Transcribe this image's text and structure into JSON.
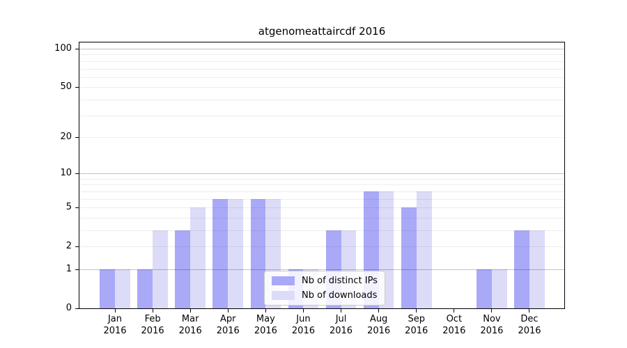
{
  "chart_data": {
    "type": "bar",
    "title": "atgenomeattaircdf 2016",
    "yscale": "log1p",
    "ylim": [
      0,
      112
    ],
    "grid": true,
    "legend_position": "lower center",
    "yticks": [
      "0",
      "1",
      "2",
      "5",
      "10",
      "20",
      "50",
      "100"
    ],
    "ytick_values": [
      0,
      1,
      2,
      5,
      10,
      20,
      50,
      100
    ],
    "major_gridlines": [
      1,
      10,
      100
    ],
    "minor_gridlines": [
      2,
      3,
      4,
      5,
      6,
      7,
      8,
      9,
      20,
      30,
      40,
      50,
      60,
      70,
      80,
      90
    ],
    "categories": [
      {
        "month": "Jan",
        "year": "2016"
      },
      {
        "month": "Feb",
        "year": "2016"
      },
      {
        "month": "Mar",
        "year": "2016"
      },
      {
        "month": "Apr",
        "year": "2016"
      },
      {
        "month": "May",
        "year": "2016"
      },
      {
        "month": "Jun",
        "year": "2016"
      },
      {
        "month": "Jul",
        "year": "2016"
      },
      {
        "month": "Aug",
        "year": "2016"
      },
      {
        "month": "Sep",
        "year": "2016"
      },
      {
        "month": "Oct",
        "year": "2016"
      },
      {
        "month": "Nov",
        "year": "2016"
      },
      {
        "month": "Dec",
        "year": "2016"
      }
    ],
    "series": [
      {
        "name": "Nb of distinct IPs",
        "color": "#a9a9f8",
        "values": [
          1,
          1,
          3,
          6,
          6,
          1,
          3,
          7,
          5,
          0,
          1,
          3
        ]
      },
      {
        "name": "Nb of downloads",
        "color": "#dcdcf8",
        "values": [
          1,
          3,
          5,
          6,
          6,
          1,
          3,
          7,
          7,
          0,
          1,
          3
        ]
      }
    ],
    "colors": {
      "background": "#ffffff",
      "distinct_ips_bar": "#a9a9f8",
      "downloads_bar": "#dcdcf8"
    }
  }
}
